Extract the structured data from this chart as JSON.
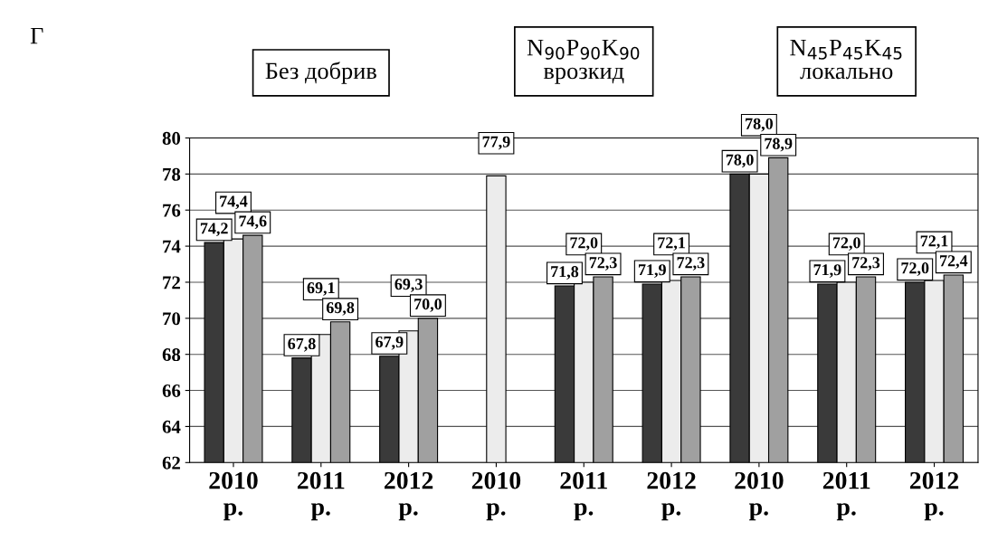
{
  "chart_data": {
    "type": "bar",
    "categories": [
      "2010\nр.",
      "2011\nр.",
      "2012\nр.",
      "2010\nр.",
      "2011\nр.",
      "2012\nр.",
      "2010\nр.",
      "2011\nр.",
      "2012\nр."
    ],
    "series": [
      {
        "color": "#3a3a3a",
        "values": [
          74.2,
          67.8,
          67.9,
          null,
          71.8,
          71.9,
          78.0,
          71.9,
          72.0
        ],
        "value_labels": [
          "74,2",
          "67,8",
          "67,9",
          null,
          "71,8",
          "71,9",
          "78,0",
          "71,9",
          "72,0"
        ]
      },
      {
        "color": "#ececec",
        "values": [
          74.4,
          69.1,
          69.3,
          77.9,
          72.0,
          72.1,
          78.0,
          72.0,
          72.1
        ],
        "value_labels": [
          "74,4",
          "69,1",
          "69,3",
          "77,9",
          "72,0",
          "72,1",
          "78,0",
          "72,0",
          "72,1"
        ]
      },
      {
        "color": "#a0a0a0",
        "values": [
          74.6,
          69.8,
          70.0,
          null,
          72.3,
          72.3,
          78.9,
          72.3,
          72.4
        ],
        "value_labels": [
          "74,6",
          "69,8",
          "70,0",
          null,
          "72,3",
          "72,3",
          "78,9",
          "72,3",
          "72,4"
        ]
      }
    ],
    "ylim": [
      62,
      80
    ],
    "yticks": [
      62,
      64,
      66,
      68,
      70,
      72,
      74,
      76,
      78,
      80
    ],
    "grid": "y",
    "legend": false,
    "annotations": [
      "Г",
      "Без добрив",
      "N$_{90}$P$_{90}$K$_{90}$\nврозкид",
      "N$_{45}$P$_{45}$K$_{45}$\nлокально"
    ]
  }
}
